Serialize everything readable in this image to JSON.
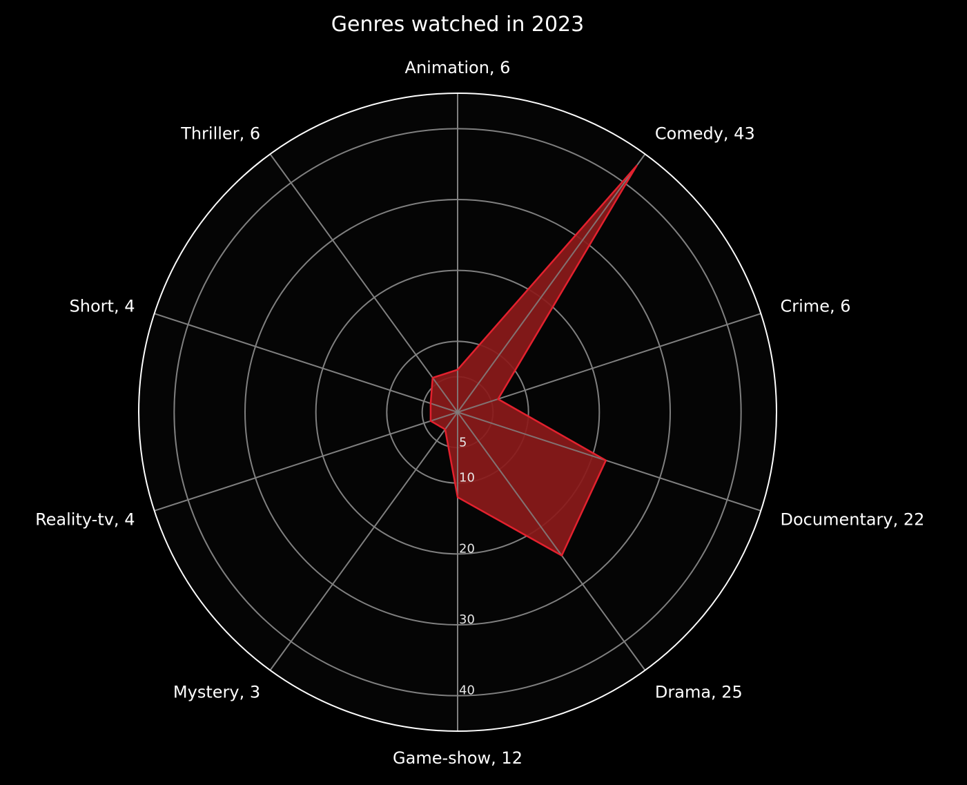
{
  "chart_data": {
    "type": "radar",
    "title": "Genres watched in 2023",
    "categories": [
      "Animation",
      "Comedy",
      "Crime",
      "Documentary",
      "Drama",
      "Game-show",
      "Mystery",
      "Reality-tv",
      "Short",
      "Thriller"
    ],
    "values": [
      6,
      43,
      6,
      22,
      25,
      12,
      3,
      4,
      4,
      6
    ],
    "category_labels": [
      "Animation, 6",
      "Comedy, 43",
      "Crime, 6",
      "Documentary, 22",
      "Drama, 25",
      "Game-show, 12",
      "Mystery, 3",
      "Reality-tv, 4",
      "Short, 4",
      "Thriller, 6"
    ],
    "radial_ticks": [
      5,
      10,
      20,
      30,
      40
    ],
    "radial_tick_labels": [
      "5",
      "10",
      "20",
      "30",
      "40"
    ],
    "rlim": [
      0,
      45
    ],
    "grid": true,
    "colors": {
      "figure_background": "#000000",
      "axes_background": "#050505",
      "series_fill": "#8b1a1a",
      "series_edge": "#e3212e",
      "grid": "#808080",
      "frame": "#ffffff",
      "text": "#ffffff"
    }
  }
}
